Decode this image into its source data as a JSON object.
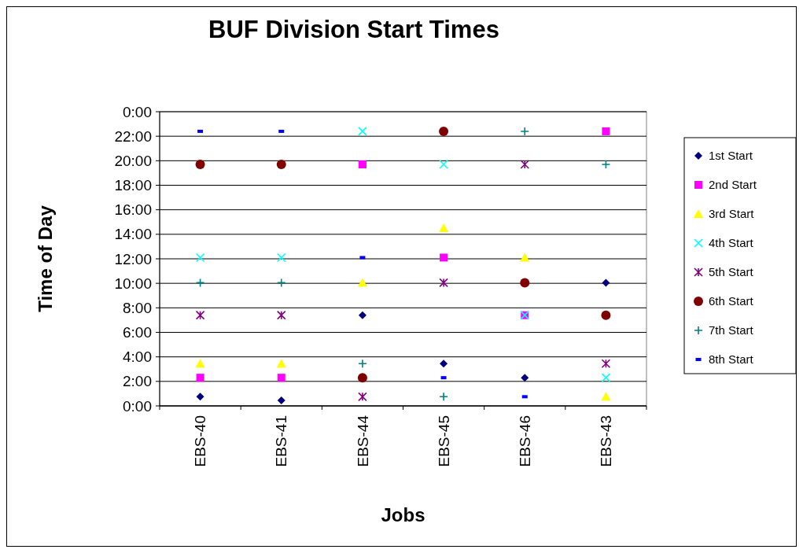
{
  "chart_data": {
    "type": "scatter",
    "title": "BUF Division Start Times",
    "xlabel": "Jobs",
    "ylabel": "Time of Day",
    "categories": [
      "EBS-40",
      "EBS-41",
      "EBS-44",
      "EBS-45",
      "EBS-46",
      "EBS-43"
    ],
    "ylim": [
      0,
      24
    ],
    "yticks": [
      {
        "value": 0,
        "label": "0:00"
      },
      {
        "value": 2,
        "label": "2:00"
      },
      {
        "value": 4,
        "label": "4:00"
      },
      {
        "value": 6,
        "label": "6:00"
      },
      {
        "value": 8,
        "label": "8:00"
      },
      {
        "value": 10,
        "label": "10:00"
      },
      {
        "value": 12,
        "label": "12:00"
      },
      {
        "value": 14,
        "label": "14:00"
      },
      {
        "value": 16,
        "label": "16:00"
      },
      {
        "value": 18,
        "label": "18:00"
      },
      {
        "value": 20,
        "label": "20:00"
      },
      {
        "value": 22,
        "label": "22:00"
      },
      {
        "value": 24,
        "label": "0:00"
      }
    ],
    "grid": "y",
    "legend": "right",
    "series": [
      {
        "name": "1st Start",
        "color": "#000080",
        "values": [
          0.75,
          0.45,
          7.4,
          3.45,
          2.3,
          10.05
        ]
      },
      {
        "name": "2nd Start",
        "color": "#ff00ff",
        "values": [
          2.3,
          2.3,
          19.7,
          12.1,
          7.4,
          22.4
        ]
      },
      {
        "name": "3rd Start",
        "color": "#ffff00",
        "values": [
          3.45,
          3.45,
          10.05,
          14.5,
          12.1,
          0.75
        ]
      },
      {
        "name": "4th Start",
        "color": "#00ffff",
        "values": [
          12.1,
          12.1,
          22.4,
          19.7,
          7.4,
          2.3
        ]
      },
      {
        "name": "5th Start",
        "color": "#800080",
        "values": [
          7.4,
          7.4,
          0.75,
          10.05,
          19.7,
          3.45
        ]
      },
      {
        "name": "6th Start",
        "color": "#800000",
        "values": [
          19.7,
          19.7,
          2.3,
          22.4,
          10.05,
          7.4
        ]
      },
      {
        "name": "7th Start",
        "color": "#008080",
        "values": [
          10.05,
          10.05,
          3.45,
          0.75,
          22.4,
          19.7
        ]
      },
      {
        "name": "8th Start",
        "color": "#0000ff",
        "values": [
          22.4,
          22.4,
          12.1,
          2.3,
          0.75,
          null
        ]
      }
    ]
  }
}
